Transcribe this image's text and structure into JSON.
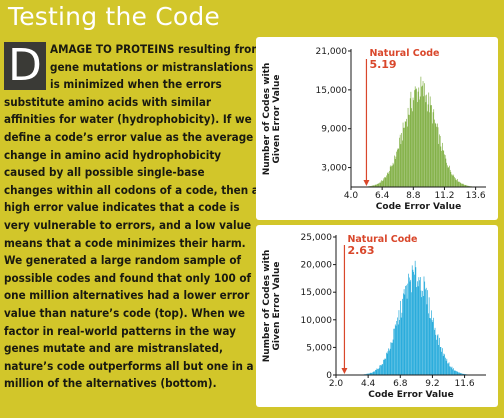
{
  "title": "Testing the Code",
  "article": {
    "dropcap": "D",
    "lines": [
      "AMAGE TO PROTEINS resulting from",
      "gene mutations or mistranslations",
      "is minimized when the errors",
      "substitute amino acids with similar",
      "affinities for water (hydrophobicity). If we",
      "define a code’s error value as the average",
      "change in amino acid hydrophobicity",
      "caused by all possible single-base",
      "changes within all codons of a code, then a",
      "high error value indicates that a code is",
      "very vulnerable to errors, and a low value",
      "means that a code minimizes their harm.",
      "We generated a large random sample of",
      "possible codes and found that only 100 of",
      "one million alternatives had a lower error",
      "value than nature’s code (top). When we",
      "factor in real-world patterns in the way",
      "genes mutate and are mistranslated,",
      "nature’s code outperforms all but one in a",
      "million of the alternatives (bottom)."
    ]
  },
  "chart_data": [
    {
      "type": "bar",
      "color": "#7aab3a",
      "annotation_color": "#d9472b",
      "xlabel": "Code Error Value",
      "ylabel_line1": "Number of Codes with",
      "ylabel_line2": "Given Error Value",
      "xlim": [
        4.0,
        14.4
      ],
      "ylim": [
        0,
        21000
      ],
      "x_ticks": [
        "4.0",
        "6.4",
        "8.8",
        "11.2",
        "13.6"
      ],
      "x_tick_values": [
        4.0,
        6.4,
        8.8,
        11.2,
        13.6
      ],
      "y_ticks": [
        "3,000",
        "9,000",
        "15,000",
        "21,000"
      ],
      "y_tick_values": [
        3000,
        9000,
        15000,
        21000
      ],
      "annotation_label": "Natural Code",
      "annotation_value": "5.19",
      "annotation_x": 5.19,
      "distribution": {
        "mean": 9.3,
        "sd": 1.25,
        "peak": 15500
      }
    },
    {
      "type": "bar",
      "color": "#1aa6d9",
      "annotation_color": "#d9472b",
      "xlabel": "Code Error Value",
      "ylabel_line1": "Number of Codes with",
      "ylabel_line2": "Given Error Value",
      "xlim": [
        2.0,
        13.2
      ],
      "ylim": [
        0,
        25000
      ],
      "x_ticks": [
        "2.0",
        "4.4",
        "6.8",
        "9.2",
        "11.6"
      ],
      "x_tick_values": [
        2.0,
        4.4,
        6.8,
        9.2,
        11.6
      ],
      "y_ticks": [
        "0",
        "5,000",
        "10,000",
        "15,000",
        "20,000",
        "25,000"
      ],
      "y_tick_values": [
        0,
        5000,
        10000,
        15000,
        20000,
        25000
      ],
      "annotation_label": "Natural Code",
      "annotation_value": "2.63",
      "annotation_x": 2.63,
      "distribution": {
        "mean": 7.9,
        "sd": 1.2,
        "peak": 18500
      }
    }
  ]
}
